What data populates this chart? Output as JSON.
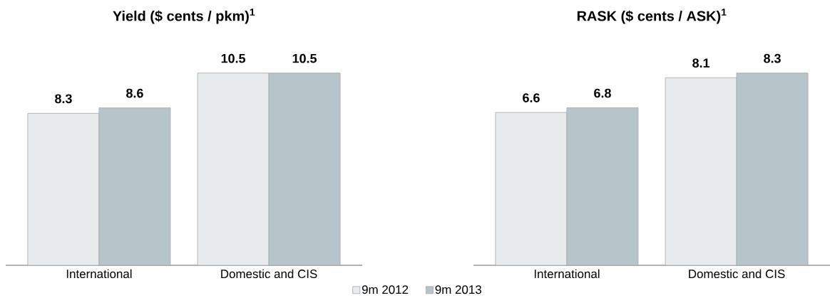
{
  "chart_data": [
    {
      "type": "bar",
      "title": "Yield ($ cents / pkm)$^{1}$",
      "categories": [
        "International",
        "Domestic and CIS"
      ],
      "tick_labels": "x",
      "data_labels": true,
      "legend": "bottom",
      "series": [
        {
          "name": "9m 2012",
          "color": "#e8ebee",
          "values": [
            8.3,
            10.5
          ]
        },
        {
          "name": "9m 2013",
          "color": "#b7c4ca",
          "values": [
            8.6,
            10.5
          ]
        }
      ]
    },
    {
      "type": "bar",
      "title": "RASK ($ cents / ASK)$^{1}$",
      "categories": [
        "International",
        "Domestic and CIS"
      ],
      "tick_labels": "x",
      "data_labels": true,
      "series": [
        {
          "color": "#e8ebee",
          "values": [
            6.6,
            8.1
          ]
        },
        {
          "color": "#b7c4ca",
          "values": [
            6.8,
            8.3
          ]
        }
      ]
    }
  ]
}
